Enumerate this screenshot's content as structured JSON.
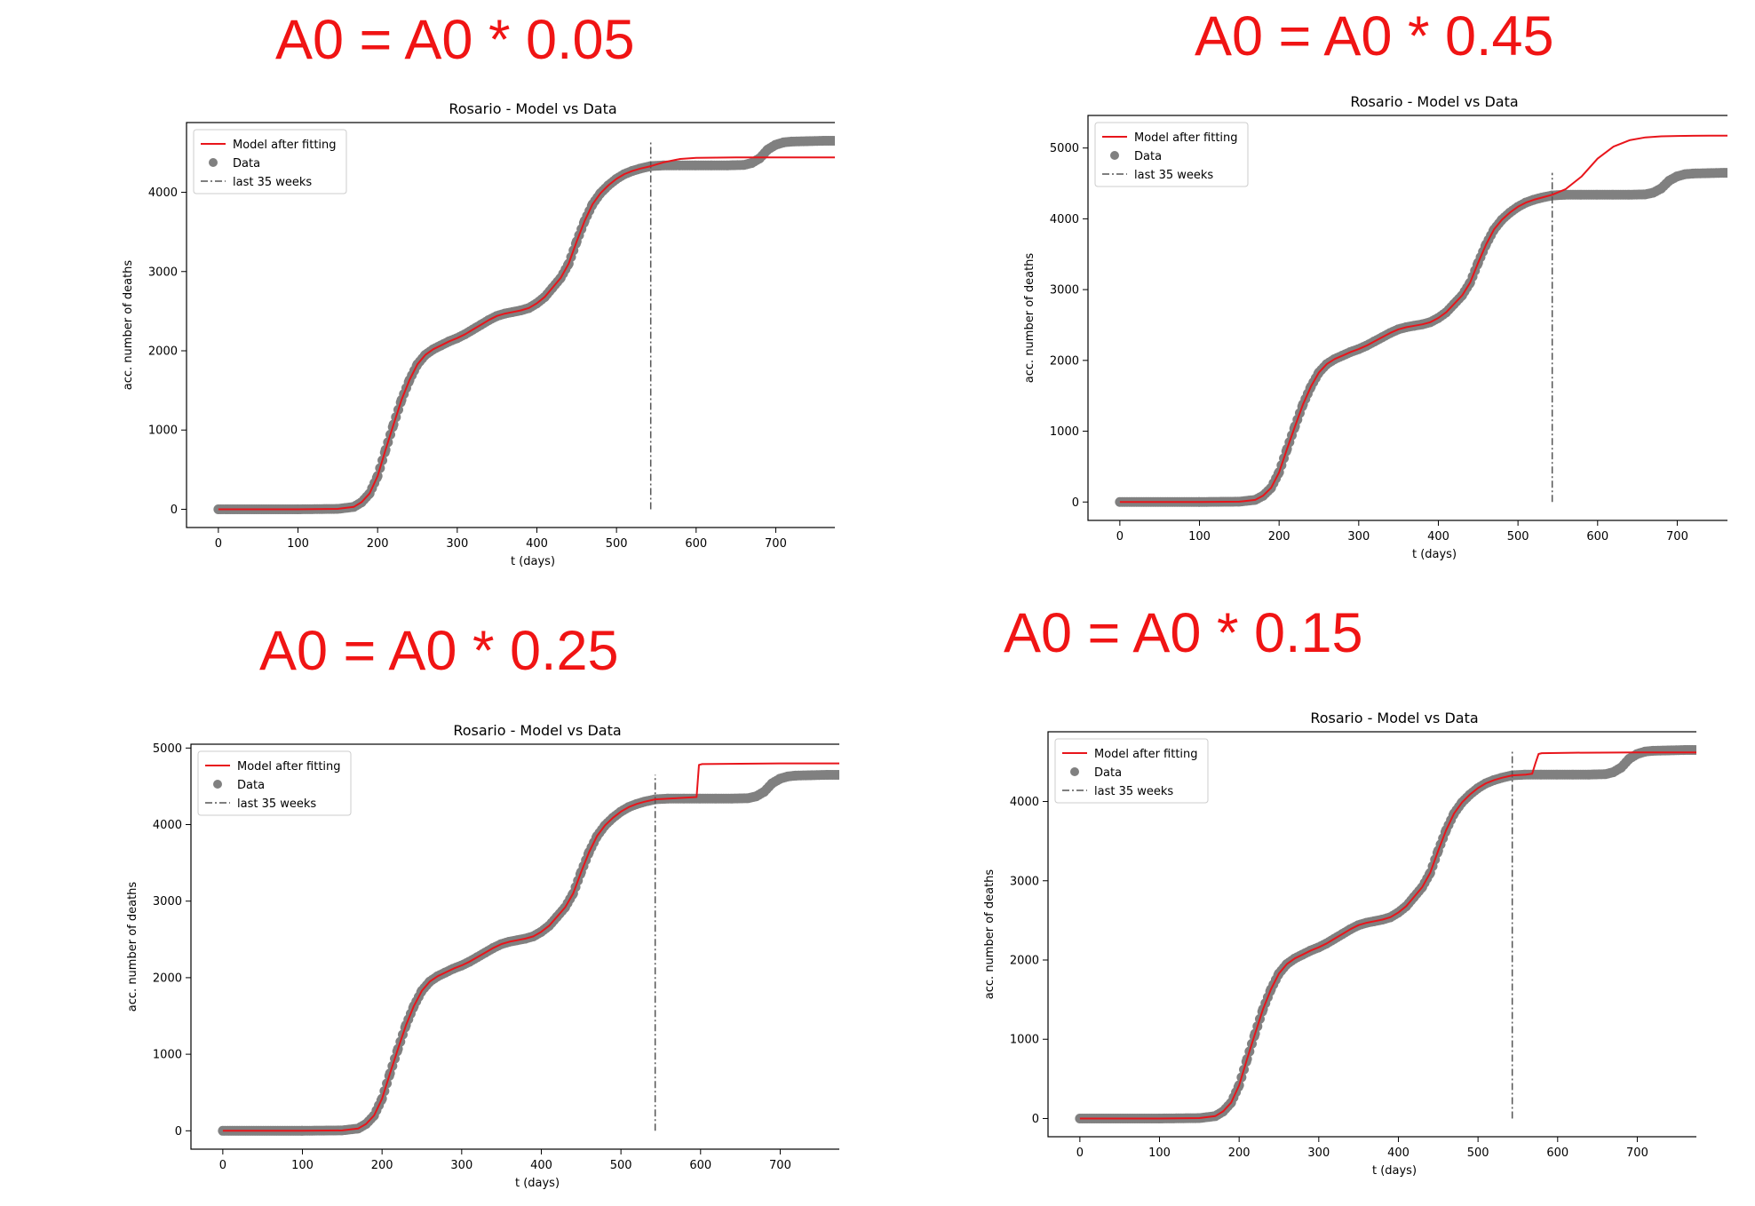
{
  "headings": [
    "A0 = A0 * 0.05",
    "A0 = A0 * 0.45",
    "A0 = A0 * 0.25",
    "A0 = A0 * 0.15"
  ],
  "colors": {
    "heading": "#f01414",
    "model": "#e8151b",
    "data": "#808080",
    "marker_line": "#555555"
  },
  "chart_data": [
    {
      "type": "line",
      "title": "Rosario - Model vs Data",
      "xlabel": "t (days)",
      "ylabel": "acc. number of deaths",
      "xlim": [
        -40,
        830
      ],
      "ylim": [
        -230,
        4880
      ],
      "xticks": [
        0,
        100,
        200,
        300,
        400,
        500,
        600,
        700,
        800
      ],
      "yticks": [
        0,
        1000,
        2000,
        3000,
        4000
      ],
      "legend": {
        "placement": "top-left",
        "entries": [
          "Model after fitting",
          "Data",
          "last 35 weeks"
        ]
      },
      "vline": {
        "x": 543,
        "ymin": 0,
        "ymax": 4650
      },
      "series": [
        {
          "name": "Data",
          "style": "scatter",
          "x": [
            0,
            100,
            150,
            170,
            180,
            190,
            200,
            210,
            220,
            230,
            240,
            250,
            260,
            270,
            280,
            290,
            300,
            310,
            320,
            330,
            340,
            350,
            360,
            370,
            380,
            390,
            400,
            410,
            420,
            430,
            440,
            450,
            460,
            470,
            480,
            490,
            500,
            510,
            520,
            530,
            543,
            560,
            580,
            600,
            620,
            640,
            660,
            670,
            680,
            690,
            700,
            710,
            720,
            740,
            760,
            787
          ],
          "y": [
            0,
            0,
            5,
            30,
            90,
            200,
            420,
            750,
            1070,
            1380,
            1630,
            1830,
            1950,
            2020,
            2070,
            2120,
            2160,
            2210,
            2270,
            2330,
            2390,
            2440,
            2470,
            2490,
            2510,
            2540,
            2600,
            2680,
            2800,
            2920,
            3100,
            3380,
            3640,
            3850,
            3990,
            4090,
            4170,
            4230,
            4270,
            4300,
            4330,
            4340,
            4340,
            4340,
            4340,
            4340,
            4345,
            4370,
            4430,
            4540,
            4600,
            4630,
            4640,
            4645,
            4650,
            4650
          ]
        },
        {
          "name": "Model after fitting",
          "style": "line",
          "x": [
            0,
            100,
            150,
            170,
            180,
            190,
            200,
            210,
            220,
            230,
            240,
            250,
            260,
            270,
            280,
            290,
            300,
            310,
            320,
            330,
            340,
            350,
            360,
            370,
            380,
            390,
            400,
            410,
            420,
            430,
            440,
            450,
            460,
            470,
            480,
            490,
            500,
            510,
            520,
            530,
            543,
            560,
            580,
            600,
            650,
            700,
            787
          ],
          "y": [
            0,
            0,
            5,
            30,
            90,
            200,
            420,
            750,
            1070,
            1380,
            1630,
            1830,
            1950,
            2020,
            2070,
            2120,
            2160,
            2210,
            2270,
            2330,
            2390,
            2440,
            2470,
            2490,
            2510,
            2540,
            2600,
            2680,
            2800,
            2920,
            3100,
            3380,
            3640,
            3850,
            3990,
            4090,
            4170,
            4230,
            4270,
            4300,
            4330,
            4380,
            4420,
            4435,
            4440,
            4440,
            4440
          ]
        }
      ]
    },
    {
      "type": "line",
      "title": "Rosario - Model vs Data",
      "xlabel": "t (days)",
      "ylabel": "acc. number of deaths",
      "xlim": [
        -40,
        830
      ],
      "ylim": [
        -260,
        5460
      ],
      "xticks": [
        0,
        100,
        200,
        300,
        400,
        500,
        600,
        700,
        800
      ],
      "yticks": [
        0,
        1000,
        2000,
        3000,
        4000,
        5000
      ],
      "legend": {
        "placement": "top-left",
        "entries": [
          "Model after fitting",
          "Data",
          "last 35 weeks"
        ]
      },
      "vline": {
        "x": 543,
        "ymin": 0,
        "ymax": 4650
      },
      "series": [
        {
          "name": "Data",
          "style": "scatter",
          "x": [
            0,
            100,
            150,
            170,
            180,
            190,
            200,
            210,
            220,
            230,
            240,
            250,
            260,
            270,
            280,
            290,
            300,
            310,
            320,
            330,
            340,
            350,
            360,
            370,
            380,
            390,
            400,
            410,
            420,
            430,
            440,
            450,
            460,
            470,
            480,
            490,
            500,
            510,
            520,
            530,
            543,
            560,
            580,
            600,
            620,
            640,
            660,
            670,
            680,
            690,
            700,
            710,
            720,
            740,
            760,
            787
          ],
          "y": [
            0,
            0,
            5,
            30,
            90,
            200,
            420,
            750,
            1070,
            1380,
            1630,
            1830,
            1950,
            2020,
            2070,
            2120,
            2160,
            2210,
            2270,
            2330,
            2390,
            2440,
            2470,
            2490,
            2510,
            2540,
            2600,
            2680,
            2800,
            2920,
            3100,
            3380,
            3640,
            3850,
            3990,
            4090,
            4170,
            4230,
            4270,
            4300,
            4330,
            4340,
            4340,
            4340,
            4340,
            4340,
            4345,
            4370,
            4430,
            4540,
            4600,
            4630,
            4640,
            4645,
            4650,
            4650
          ]
        },
        {
          "name": "Model after fitting",
          "style": "line",
          "x": [
            0,
            100,
            150,
            170,
            180,
            190,
            200,
            210,
            220,
            230,
            240,
            250,
            260,
            270,
            280,
            290,
            300,
            310,
            320,
            330,
            340,
            350,
            360,
            370,
            380,
            390,
            400,
            410,
            420,
            430,
            440,
            450,
            460,
            470,
            480,
            490,
            500,
            510,
            520,
            530,
            543,
            560,
            580,
            600,
            620,
            640,
            660,
            680,
            700,
            740,
            787
          ],
          "y": [
            0,
            0,
            5,
            30,
            90,
            200,
            420,
            750,
            1070,
            1380,
            1630,
            1830,
            1950,
            2020,
            2070,
            2120,
            2160,
            2210,
            2270,
            2330,
            2390,
            2440,
            2470,
            2490,
            2510,
            2540,
            2600,
            2680,
            2800,
            2920,
            3100,
            3380,
            3640,
            3850,
            3990,
            4090,
            4170,
            4230,
            4270,
            4300,
            4340,
            4420,
            4600,
            4850,
            5020,
            5110,
            5150,
            5165,
            5170,
            5175,
            5175
          ]
        }
      ]
    },
    {
      "type": "line",
      "title": "Rosario - Model vs Data",
      "xlabel": "t (days)",
      "ylabel": "acc. number of deaths",
      "xlim": [
        -40,
        830
      ],
      "ylim": [
        -240,
        5050
      ],
      "xticks": [
        0,
        100,
        200,
        300,
        400,
        500,
        600,
        700,
        800
      ],
      "yticks": [
        0,
        1000,
        2000,
        3000,
        4000,
        5000
      ],
      "legend": {
        "placement": "top-left",
        "entries": [
          "Model after fitting",
          "Data",
          "last 35 weeks"
        ]
      },
      "vline": {
        "x": 543,
        "ymin": 0,
        "ymax": 4650
      },
      "series": [
        {
          "name": "Data",
          "style": "scatter",
          "x": [
            0,
            100,
            150,
            170,
            180,
            190,
            200,
            210,
            220,
            230,
            240,
            250,
            260,
            270,
            280,
            290,
            300,
            310,
            320,
            330,
            340,
            350,
            360,
            370,
            380,
            390,
            400,
            410,
            420,
            430,
            440,
            450,
            460,
            470,
            480,
            490,
            500,
            510,
            520,
            530,
            543,
            560,
            580,
            600,
            620,
            640,
            660,
            670,
            680,
            690,
            700,
            710,
            720,
            740,
            760,
            787
          ],
          "y": [
            0,
            0,
            5,
            30,
            90,
            200,
            420,
            750,
            1070,
            1380,
            1630,
            1830,
            1950,
            2020,
            2070,
            2120,
            2160,
            2210,
            2270,
            2330,
            2390,
            2440,
            2470,
            2490,
            2510,
            2540,
            2600,
            2680,
            2800,
            2920,
            3100,
            3380,
            3640,
            3850,
            3990,
            4090,
            4170,
            4230,
            4270,
            4300,
            4330,
            4340,
            4340,
            4340,
            4340,
            4340,
            4345,
            4370,
            4430,
            4540,
            4600,
            4630,
            4640,
            4645,
            4650,
            4650
          ]
        },
        {
          "name": "Model after fitting",
          "style": "line",
          "x": [
            0,
            100,
            150,
            170,
            180,
            190,
            200,
            210,
            220,
            230,
            240,
            250,
            260,
            270,
            280,
            290,
            300,
            310,
            320,
            330,
            340,
            350,
            360,
            370,
            380,
            390,
            400,
            410,
            420,
            430,
            440,
            450,
            460,
            470,
            480,
            490,
            500,
            510,
            520,
            530,
            543,
            560,
            580,
            595,
            598,
            602,
            650,
            700,
            787
          ],
          "y": [
            0,
            0,
            5,
            30,
            90,
            200,
            420,
            750,
            1070,
            1380,
            1630,
            1830,
            1950,
            2020,
            2070,
            2120,
            2160,
            2210,
            2270,
            2330,
            2390,
            2440,
            2470,
            2490,
            2510,
            2540,
            2600,
            2680,
            2800,
            2920,
            3100,
            3380,
            3640,
            3850,
            3990,
            4090,
            4170,
            4230,
            4270,
            4300,
            4330,
            4340,
            4350,
            4360,
            4780,
            4790,
            4795,
            4800,
            4800
          ]
        }
      ]
    },
    {
      "type": "line",
      "title": "Rosario - Model vs Data",
      "xlabel": "t (days)",
      "ylabel": "acc. number of deaths",
      "xlim": [
        -40,
        830
      ],
      "ylim": [
        -230,
        4880
      ],
      "xticks": [
        0,
        100,
        200,
        300,
        400,
        500,
        600,
        700,
        800
      ],
      "yticks": [
        0,
        1000,
        2000,
        3000,
        4000
      ],
      "legend": {
        "placement": "top-left",
        "entries": [
          "Model after fitting",
          "Data",
          "last 35 weeks"
        ]
      },
      "vline": {
        "x": 543,
        "ymin": 0,
        "ymax": 4650
      },
      "series": [
        {
          "name": "Data",
          "style": "scatter",
          "x": [
            0,
            100,
            150,
            170,
            180,
            190,
            200,
            210,
            220,
            230,
            240,
            250,
            260,
            270,
            280,
            290,
            300,
            310,
            320,
            330,
            340,
            350,
            360,
            370,
            380,
            390,
            400,
            410,
            420,
            430,
            440,
            450,
            460,
            470,
            480,
            490,
            500,
            510,
            520,
            530,
            543,
            560,
            580,
            600,
            620,
            640,
            660,
            670,
            680,
            690,
            700,
            710,
            720,
            740,
            760,
            787
          ],
          "y": [
            0,
            0,
            5,
            30,
            90,
            200,
            420,
            750,
            1070,
            1380,
            1630,
            1830,
            1950,
            2020,
            2070,
            2120,
            2160,
            2210,
            2270,
            2330,
            2390,
            2440,
            2470,
            2490,
            2510,
            2540,
            2600,
            2680,
            2800,
            2920,
            3100,
            3380,
            3640,
            3850,
            3990,
            4090,
            4170,
            4230,
            4270,
            4300,
            4330,
            4340,
            4340,
            4340,
            4340,
            4340,
            4345,
            4370,
            4430,
            4540,
            4600,
            4630,
            4640,
            4645,
            4650,
            4650
          ]
        },
        {
          "name": "Model after fitting",
          "style": "line",
          "x": [
            0,
            100,
            150,
            170,
            180,
            190,
            200,
            210,
            220,
            230,
            240,
            250,
            260,
            270,
            280,
            290,
            300,
            310,
            320,
            330,
            340,
            350,
            360,
            370,
            380,
            390,
            400,
            410,
            420,
            430,
            440,
            450,
            460,
            470,
            480,
            490,
            500,
            510,
            520,
            530,
            543,
            560,
            568,
            572,
            576,
            580,
            620,
            700,
            787
          ],
          "y": [
            0,
            0,
            5,
            30,
            90,
            200,
            420,
            750,
            1070,
            1380,
            1630,
            1830,
            1950,
            2020,
            2070,
            2120,
            2160,
            2210,
            2270,
            2330,
            2390,
            2440,
            2470,
            2490,
            2510,
            2540,
            2600,
            2680,
            2800,
            2920,
            3100,
            3380,
            3640,
            3850,
            3990,
            4090,
            4170,
            4230,
            4270,
            4300,
            4330,
            4340,
            4350,
            4480,
            4600,
            4610,
            4615,
            4620,
            4620
          ]
        }
      ]
    }
  ]
}
